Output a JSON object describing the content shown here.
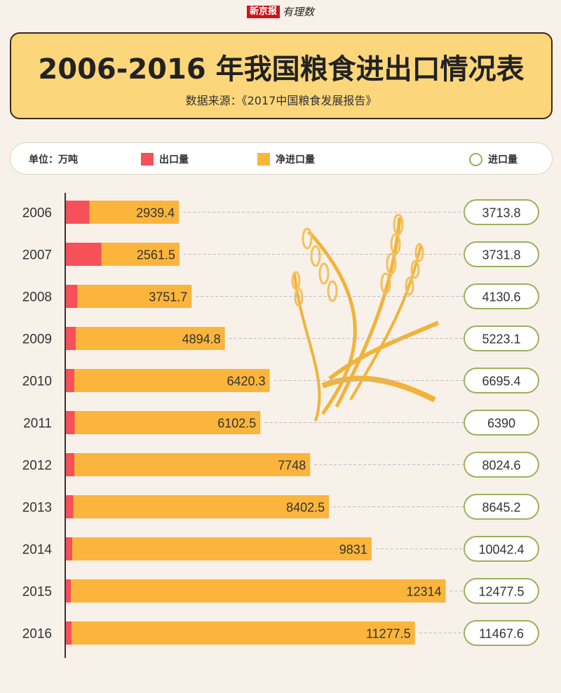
{
  "brand": {
    "name": "新京报",
    "sub": "有理数"
  },
  "header": {
    "title": "2006-2016 年我国粮食进出口情况表",
    "subtitle": "数据来源：《2017中国粮食发展报告》"
  },
  "legend": {
    "unit": "单位：万吨",
    "export_label": "出口量",
    "net_import_label": "净进口量",
    "import_label": "进口量"
  },
  "colors": {
    "export": "#f6505a",
    "net_import": "#fbb53c",
    "import_ring": "#9bb15a",
    "background": "#f8f1ea",
    "title_bg": "#fcd67a"
  },
  "chart_data": {
    "type": "bar",
    "orientation": "horizontal",
    "stacked": true,
    "categories": [
      "2006",
      "2007",
      "2008",
      "2009",
      "2010",
      "2011",
      "2012",
      "2013",
      "2014",
      "2015",
      "2016"
    ],
    "series": [
      {
        "name": "出口量",
        "values": [
          774.4,
          1170.3,
          378.9,
          328.3,
          275.1,
          287.5,
          276.6,
          242.7,
          211.4,
          163.5,
          190.1
        ]
      },
      {
        "name": "净进口量",
        "values": [
          2939.4,
          2561.5,
          3751.7,
          4894.8,
          6420.3,
          6102.5,
          7748,
          8402.5,
          9831,
          12314,
          11277.5
        ]
      }
    ],
    "net_import_labels": [
      "2939.4",
      "2561.5",
      "3751.7",
      "4894.8",
      "6420.3",
      "6102.5",
      "7748",
      "8402.5",
      "9831",
      "12314",
      "11277.5"
    ],
    "import_labels": [
      "3713.8",
      "3731.8",
      "4130.6",
      "5223.1",
      "6695.4",
      "6390",
      "8024.6",
      "8645.2",
      "10042.4",
      "12477.5",
      "11467.6"
    ],
    "imports": [
      3713.8,
      3731.8,
      4130.6,
      5223.1,
      6695.4,
      6390,
      8024.6,
      8645.2,
      10042.4,
      12477.5,
      11467.6
    ]
  }
}
